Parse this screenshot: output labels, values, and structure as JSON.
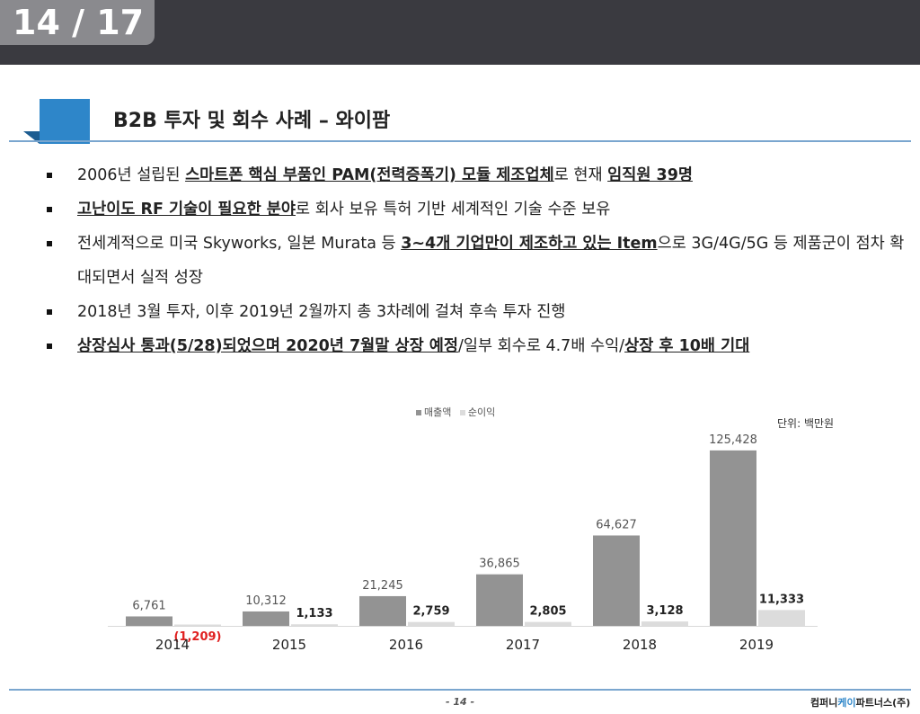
{
  "page_counter": "14 / 17",
  "title": "B2B 투자 및 회수 사례 – 와이팜",
  "bullets": [
    {
      "parts": [
        {
          "text": "2006년 설립된 "
        },
        {
          "text": "스마트폰 핵심 부품인 PAM(전력증폭기) 모듈 제조업체",
          "bold": true
        },
        {
          "text": "로 현재 "
        },
        {
          "text": "임직원 39명",
          "bold": true
        }
      ]
    },
    {
      "parts": [
        {
          "text": "고난이도 RF 기술이 필요한 분야",
          "bold": true
        },
        {
          "text": "로 회사 보유 특허 기반 세계적인 기술 수준 보유"
        }
      ]
    },
    {
      "parts": [
        {
          "text": "전세계적으로 미국 Skyworks, 일본 Murata 등 "
        },
        {
          "text": "3~4개 기업만이 제조하고 있는 Item",
          "bold": true
        },
        {
          "text": "으로 3G/4G/5G 등 제품군이 점차 확대되면서 실적 성장"
        }
      ]
    },
    {
      "parts": [
        {
          "text": "2018년 3월 투자, 이후 2019년 2월까지 총 3차례에 걸쳐 후속 투자 진행"
        }
      ]
    },
    {
      "parts": [
        {
          "text": "상장심사 통과(5/28)되었으며 2020년 7월말 상장 예정",
          "bold": true
        },
        {
          "text": "/일부 회수로 4.7배 수익/"
        },
        {
          "text": "상장 후 10배 기대",
          "bold": true
        }
      ]
    }
  ],
  "chart_data": {
    "type": "bar",
    "categories": [
      "2014",
      "2015",
      "2016",
      "2017",
      "2018",
      "2019"
    ],
    "series": [
      {
        "name": "매출액",
        "values": [
          6761,
          10312,
          21245,
          36865,
          64627,
          125428
        ],
        "labels": [
          "6,761",
          "10,312",
          "21,245",
          "36,865",
          "64,627",
          "125,428"
        ],
        "color": "#939393"
      },
      {
        "name": "순이익",
        "values": [
          -1209,
          1133,
          2759,
          2805,
          3128,
          11333
        ],
        "labels": [
          "(1,209)",
          "1,133",
          "2,759",
          "2,805",
          "3,128",
          "11,333"
        ],
        "color": "#dcdcdc"
      }
    ],
    "negative_label_color": "#e02020",
    "unit": "단위: 백만원",
    "ylim": [
      0,
      135000
    ],
    "legend_position": "top-center"
  },
  "footer": {
    "page_number": "- 14 -",
    "company_pre": "컴퍼니",
    "company_accent": "케이",
    "company_post": "파트너스(주)"
  }
}
